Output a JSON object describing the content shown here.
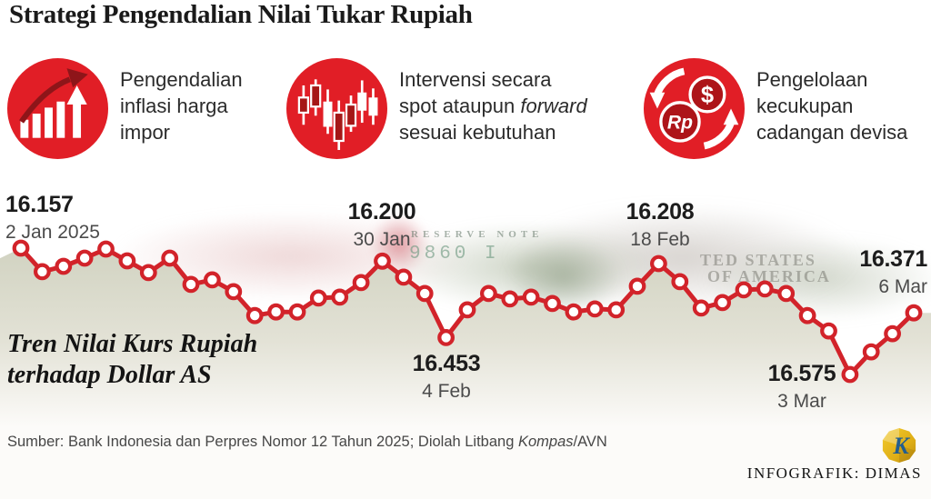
{
  "header": {
    "title": "Strategi Pengendalian Nilai Tukar Rupiah"
  },
  "strategies": [
    {
      "icon": "bar-chart-rising-arrow-icon",
      "lines": [
        "Pengendalian",
        "inflasi harga",
        "impor"
      ]
    },
    {
      "icon": "candlestick-chart-icon",
      "lines": [
        "Intervensi secara",
        "spot ataupun ",
        "sesuai kebutuhan"
      ],
      "em": "forward"
    },
    {
      "icon": "currency-exchange-icon",
      "lines": [
        "Pengelolaan",
        "kecukupan",
        "cadangan devisa"
      ],
      "badges": [
        "$",
        "Rp"
      ]
    }
  ],
  "trend_label": {
    "line1": "Tren Nilai Kurs Rupiah",
    "line2": "terhadap Dollar AS"
  },
  "source": {
    "pre": "Sumber: Bank Indonesia dan Perpres Nomor 12 Tahun 2025; Diolah Litbang ",
    "em": "Kompas",
    "post": "/AVN"
  },
  "footer": {
    "credit": "INFOGRAFIK: DIMAS",
    "logo_letter": "K"
  },
  "background": {
    "watermarks": {
      "note": "RESERVE NOTE",
      "serial": "9860 I",
      "states1": "TED STATES",
      "states2": "OF AMERICA"
    }
  },
  "colors": {
    "accent_red": "#E11E26",
    "line_red": "#D2232A",
    "dark_red": "#8E1519",
    "badge_red": "#AD1419",
    "area_fill_top": "#CFD1BF",
    "gold": "#E6B91E",
    "logo_blue": "#235E8F"
  },
  "chart_data": {
    "type": "line",
    "title": "Tren Nilai Kurs Rupiah terhadap Dollar AS",
    "x_unit": "consecutive trading days, 2 Jan 2025 – 6 Mar 2025",
    "ylabel": "Rupiah per US Dollar",
    "y_inverted_on_screen": true,
    "ylim": [
      16100,
      16650
    ],
    "grid": false,
    "legend": "none",
    "line_color": "#D2232A",
    "marker": "open-circle",
    "values": [
      16157,
      16235,
      16217,
      16190,
      16160,
      16199,
      16238,
      16190,
      16277,
      16262,
      16301,
      16380,
      16368,
      16368,
      16322,
      16319,
      16271,
      16200,
      16253,
      16307,
      16453,
      16361,
      16307,
      16325,
      16319,
      16340,
      16368,
      16358,
      16361,
      16283,
      16208,
      16268,
      16355,
      16337,
      16295,
      16292,
      16307,
      16380,
      16431,
      16575,
      16500,
      16440,
      16371
    ],
    "annotations": [
      {
        "index": 0,
        "value_label": "16.157",
        "date_label": "2 Jan 2025"
      },
      {
        "index": 17,
        "value_label": "16.200",
        "date_label": "30 Jan"
      },
      {
        "index": 20,
        "value_label": "16.453",
        "date_label": "4 Feb"
      },
      {
        "index": 30,
        "value_label": "16.208",
        "date_label": "18 Feb"
      },
      {
        "index": 39,
        "value_label": "16.575",
        "date_label": "3 Mar"
      },
      {
        "index": 42,
        "value_label": "16.371",
        "date_label": "6 Mar"
      }
    ]
  }
}
